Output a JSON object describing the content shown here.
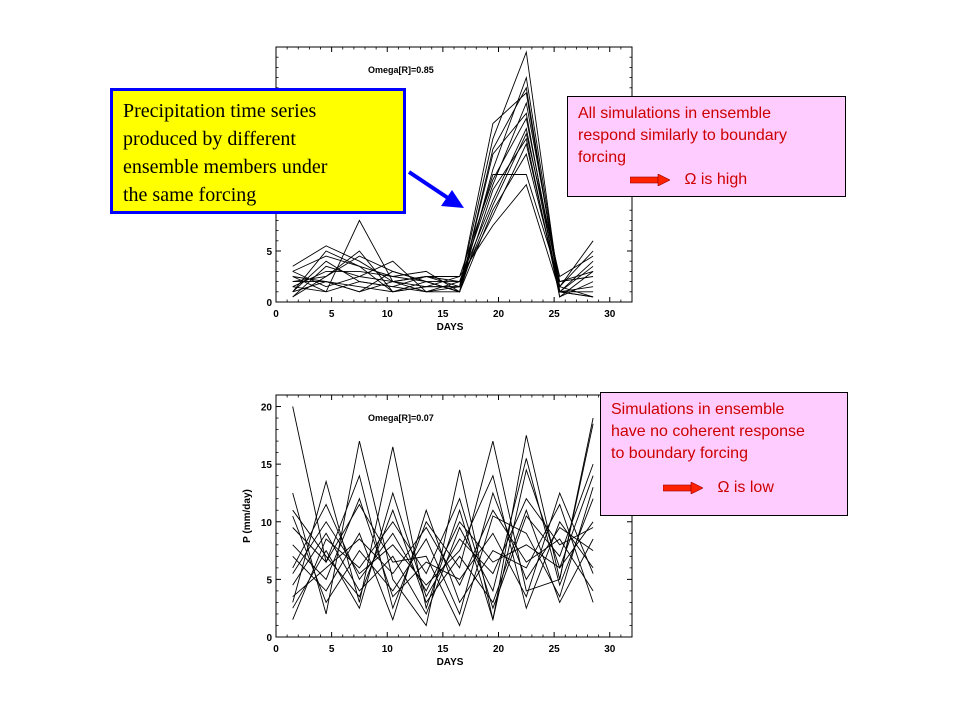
{
  "callouts": {
    "ensemble_note": {
      "lines": [
        "Precipitation time series",
        "produced by different",
        "ensemble members under",
        "the same forcing"
      ]
    },
    "high": {
      "lines": [
        "All simulations in ensemble",
        "respond similarly to boundary",
        "forcing"
      ],
      "result": "Ω is high"
    },
    "low": {
      "lines": [
        "Simulations in ensemble",
        "have no coherent response",
        "to boundary forcing"
      ],
      "result": "Ω is low"
    }
  },
  "colors": {
    "callout_yellow_bg": "#ffff00",
    "callout_yellow_border": "#0000ff",
    "callout_pink_bg": "#ffccff",
    "callout_text": "#cc0000",
    "arrow_blue": "#0000ff",
    "arrow_red": "#ff2200"
  },
  "chart_data": [
    {
      "type": "line",
      "annotation": "Omega[R]=0.85",
      "xlabel": "DAYS",
      "ylabel": "",
      "xlim": [
        0,
        32
      ],
      "ylim": [
        0,
        25
      ],
      "xticks": [
        0,
        5,
        10,
        15,
        20,
        25,
        30
      ],
      "yticks": [
        0,
        5
      ],
      "x": [
        1.5,
        4.5,
        7.5,
        10.5,
        13.5,
        16.5,
        19.5,
        22.5,
        25.5,
        28.5
      ],
      "series": [
        {
          "values": [
            3.5,
            5.5,
            4.0,
            2.0,
            1.5,
            1.5,
            16.0,
            24.5,
            1.0,
            0.5
          ]
        },
        {
          "values": [
            1.0,
            5.0,
            3.5,
            2.5,
            2.0,
            1.0,
            13.0,
            22.0,
            1.5,
            6.0
          ]
        },
        {
          "values": [
            2.0,
            2.5,
            5.0,
            1.0,
            2.0,
            1.0,
            15.0,
            21.0,
            1.0,
            4.0
          ]
        },
        {
          "values": [
            0.5,
            3.5,
            2.5,
            4.0,
            1.0,
            1.5,
            17.5,
            20.5,
            1.0,
            0.5
          ]
        },
        {
          "values": [
            1.5,
            1.0,
            8.0,
            2.0,
            2.5,
            2.0,
            11.5,
            19.5,
            2.0,
            2.5
          ]
        },
        {
          "values": [
            2.5,
            2.0,
            1.0,
            3.0,
            2.0,
            1.0,
            14.5,
            18.5,
            0.5,
            3.0
          ]
        },
        {
          "values": [
            1.0,
            4.0,
            2.0,
            1.5,
            2.5,
            2.5,
            12.0,
            18.0,
            1.5,
            5.0
          ]
        },
        {
          "values": [
            3.0,
            1.5,
            2.5,
            2.0,
            1.0,
            2.0,
            10.0,
            17.0,
            1.0,
            1.0
          ]
        },
        {
          "values": [
            2.0,
            2.0,
            1.5,
            1.0,
            1.5,
            1.5,
            9.5,
            16.5,
            2.5,
            4.5
          ]
        },
        {
          "values": [
            1.5,
            3.0,
            3.0,
            2.5,
            3.0,
            1.0,
            11.0,
            16.0,
            0.5,
            2.0
          ]
        },
        {
          "values": [
            0.5,
            2.5,
            4.5,
            3.0,
            2.0,
            2.0,
            8.5,
            15.5,
            1.0,
            3.5
          ]
        },
        {
          "values": [
            2.5,
            1.0,
            2.0,
            1.5,
            1.0,
            1.0,
            9.0,
            14.5,
            1.5,
            0.5
          ]
        },
        {
          "values": [
            1.0,
            2.0,
            1.0,
            2.0,
            2.5,
            1.5,
            12.5,
            12.5,
            2.0,
            3.0
          ]
        },
        {
          "values": [
            3.0,
            4.5,
            3.5,
            1.0,
            1.5,
            2.5,
            7.5,
            11.5,
            1.0,
            1.5
          ]
        }
      ]
    },
    {
      "type": "line",
      "annotation": "Omega[R]=0.07",
      "xlabel": "DAYS",
      "ylabel": "P (mm/day)",
      "xlim": [
        0,
        32
      ],
      "ylim": [
        0,
        21
      ],
      "xticks": [
        0,
        5,
        10,
        15,
        20,
        25,
        30
      ],
      "yticks": [
        0,
        5,
        10,
        15,
        20
      ],
      "x": [
        1.5,
        4.5,
        7.5,
        10.5,
        13.5,
        16.5,
        19.5,
        22.5,
        25.5,
        28.5
      ],
      "series": [
        {
          "values": [
            20.0,
            6.5,
            14.0,
            2.5,
            10.0,
            6.0,
            17.0,
            4.0,
            5.0,
            19.0
          ]
        },
        {
          "values": [
            12.5,
            2.0,
            17.0,
            5.0,
            1.0,
            14.5,
            1.5,
            17.5,
            5.0,
            18.5
          ]
        },
        {
          "values": [
            3.0,
            13.5,
            3.0,
            16.5,
            2.5,
            11.0,
            1.5,
            14.5,
            6.0,
            14.0
          ]
        },
        {
          "values": [
            5.5,
            10.0,
            5.5,
            8.0,
            4.5,
            7.5,
            14.0,
            2.5,
            10.0,
            6.0
          ]
        },
        {
          "values": [
            9.5,
            6.5,
            11.5,
            6.5,
            7.0,
            1.0,
            10.5,
            9.0,
            3.5,
            13.0
          ]
        },
        {
          "values": [
            2.5,
            7.5,
            2.5,
            12.5,
            3.5,
            8.5,
            5.5,
            12.0,
            8.0,
            9.5
          ]
        },
        {
          "values": [
            7.0,
            4.0,
            9.0,
            1.5,
            11.0,
            3.0,
            7.5,
            6.0,
            11.5,
            3.0
          ]
        },
        {
          "values": [
            1.5,
            8.5,
            6.0,
            10.0,
            5.5,
            12.0,
            2.5,
            10.5,
            7.0,
            15.0
          ]
        },
        {
          "values": [
            10.5,
            3.0,
            7.5,
            4.0,
            8.5,
            2.0,
            12.5,
            5.0,
            9.5,
            7.5
          ]
        },
        {
          "values": [
            4.5,
            9.0,
            4.0,
            7.0,
            2.0,
            9.5,
            4.0,
            15.5,
            4.5,
            12.0
          ]
        },
        {
          "values": [
            8.0,
            5.0,
            12.0,
            3.5,
            6.5,
            5.0,
            9.0,
            3.5,
            12.5,
            5.5
          ]
        },
        {
          "values": [
            6.0,
            11.5,
            5.0,
            9.0,
            4.0,
            10.0,
            6.5,
            8.0,
            6.0,
            10.0
          ]
        },
        {
          "values": [
            3.5,
            6.0,
            8.5,
            5.5,
            9.5,
            4.5,
            11.0,
            6.5,
            8.5,
            4.0
          ]
        },
        {
          "values": [
            11.0,
            7.0,
            3.5,
            11.0,
            3.0,
            7.0,
            3.0,
            11.0,
            3.0,
            8.5
          ]
        }
      ]
    }
  ]
}
